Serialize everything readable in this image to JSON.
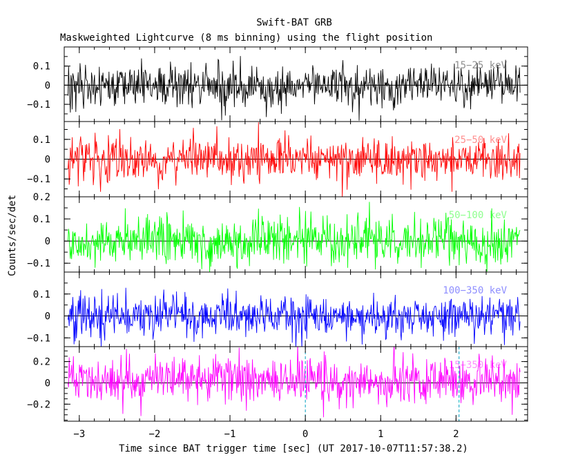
{
  "chart_data": {
    "type": "line",
    "title": "Swift-BAT GRB",
    "subtitle": "Maskweighted Lightcurve (8 ms binning) using the flight position",
    "xlabel": "Time since BAT trigger time [sec] (UT 2017-10-07T11:57:38.2)",
    "ylabel": "Counts/sec/det",
    "xlim": [
      -3.2,
      2.95
    ],
    "x_ticks": [
      -3,
      -2,
      -1,
      0,
      1,
      2
    ],
    "x_tick_labels": [
      "−3",
      "−2",
      "−1",
      "0",
      "1",
      "2"
    ],
    "x_data_range": [
      -3.15,
      2.85
    ],
    "bin_width_sec": 0.008,
    "vertical_marker_lines": [
      0.0,
      2.04
    ],
    "panels": [
      {
        "name": "15-25 keV",
        "label": "15−25 keV",
        "color": "#000000",
        "ylim": [
          -0.19,
          0.2
        ],
        "y_ticks": [
          -0.1,
          0,
          0.1
        ],
        "y_tick_labels": [
          "−0.1",
          "0",
          "0.1"
        ],
        "noise_sigma": 0.055,
        "mean": 0.0
      },
      {
        "name": "25-50 keV",
        "label": "25−50 keV",
        "color": "#ff0000",
        "ylim": [
          -0.19,
          0.19
        ],
        "y_ticks": [
          -0.1,
          0,
          0.1
        ],
        "y_tick_labels": [
          "−0.1",
          "0",
          "0.1"
        ],
        "noise_sigma": 0.055,
        "mean": 0.0
      },
      {
        "name": "50-100 keV",
        "label": "50−100 keV",
        "color": "#00ff00",
        "ylim": [
          -0.14,
          0.2
        ],
        "y_ticks": [
          -0.1,
          0,
          0.1,
          0.2
        ],
        "y_tick_labels": [
          "−0.1",
          "0",
          "0.1",
          "0.2"
        ],
        "noise_sigma": 0.05,
        "mean": 0.0
      },
      {
        "name": "100-350 keV",
        "label": "100−350 keV",
        "color": "#0000ff",
        "ylim": [
          -0.14,
          0.2
        ],
        "y_ticks": [
          -0.1,
          0,
          0.1
        ],
        "y_tick_labels": [
          "−0.1",
          "0",
          "0.1"
        ],
        "noise_sigma": 0.05,
        "mean": 0.0
      },
      {
        "name": "15-350 keV",
        "label": "15−350 keV",
        "color": "#ff00ff",
        "ylim": [
          -0.36,
          0.34
        ],
        "y_ticks": [
          -0.2,
          0,
          0.2
        ],
        "y_tick_labels": [
          "−0.2",
          "0",
          "0.2"
        ],
        "noise_sigma": 0.11,
        "mean": 0.02
      }
    ]
  }
}
